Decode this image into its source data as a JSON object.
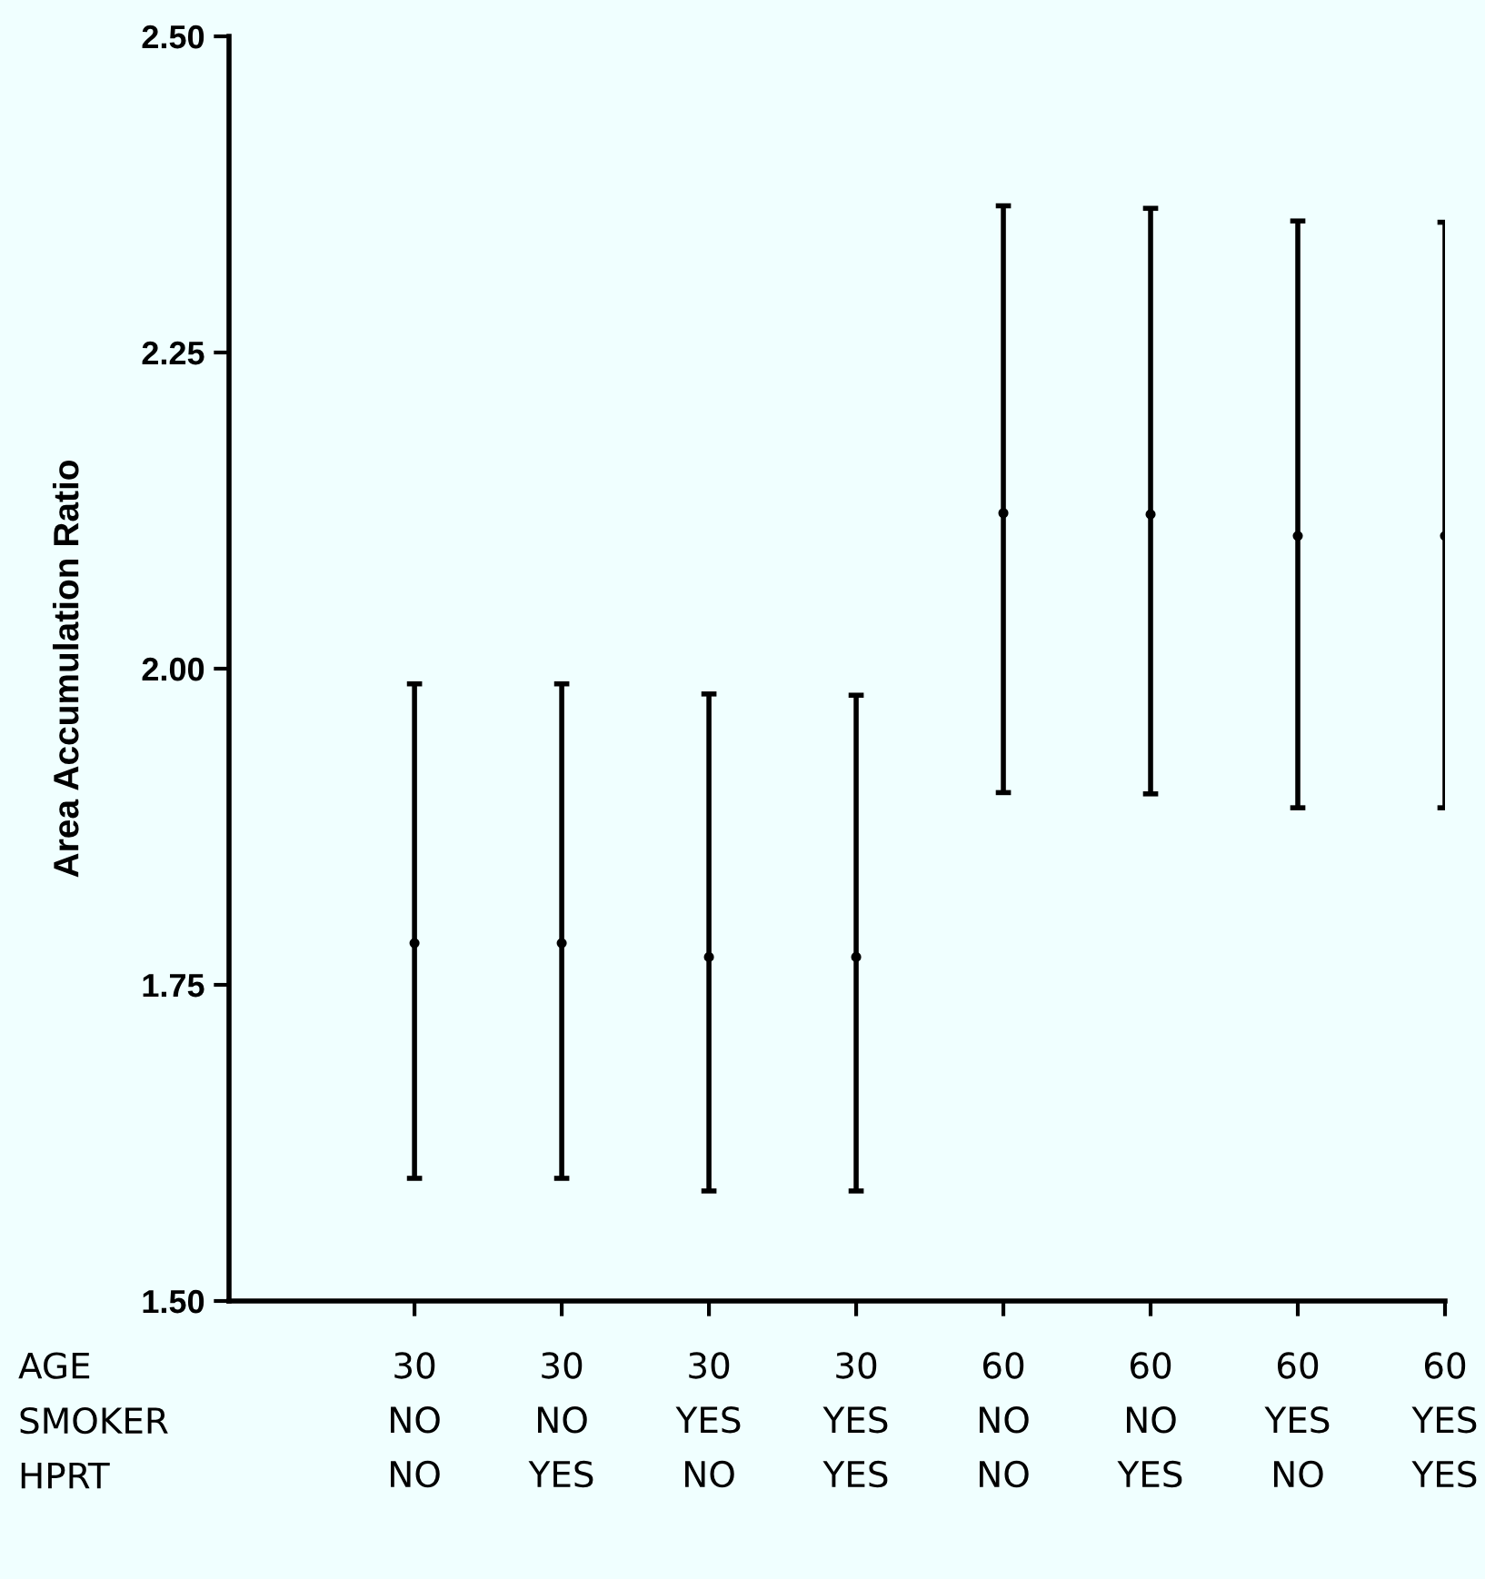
{
  "chart_data": {
    "type": "scatter",
    "ylabel": "Area Accumulation Ratio",
    "categories": [
      "30\nNO\nNO",
      "30\nNO\nYES",
      "30\nYES\nNO",
      "30\nYES\nYES",
      "60\nNO\nNO",
      "60\nNO\nYES",
      "60\nYES\nNO",
      "60\nYES\nYES"
    ],
    "annotations": [
      "AGE",
      "SMOKER",
      "HPRT"
    ],
    "series": [
      {
        "color": "#000000",
        "values": [
          1.783,
          1.783,
          1.772,
          1.772,
          2.123,
          2.122,
          2.105,
          2.105
        ],
        "errors": [
          [
            1.597,
            1.988
          ],
          [
            1.597,
            1.988
          ],
          [
            1.587,
            1.98
          ],
          [
            1.587,
            1.979
          ],
          [
            1.902,
            2.366
          ],
          [
            1.901,
            2.364
          ],
          [
            1.89,
            2.354
          ],
          [
            1.89,
            2.353
          ]
        ]
      }
    ],
    "ylim": [
      1.5,
      2.5
    ],
    "yticks": [
      {
        "value": 1.5,
        "label": "1.50"
      },
      {
        "value": 1.75,
        "label": "1.75"
      },
      {
        "value": 2.0,
        "label": "2.00"
      },
      2.25,
      {
        "value": 2.5,
        "label": "2.50"
      }
    ],
    "marker": "circle",
    "grid": false,
    "legend": false
  }
}
